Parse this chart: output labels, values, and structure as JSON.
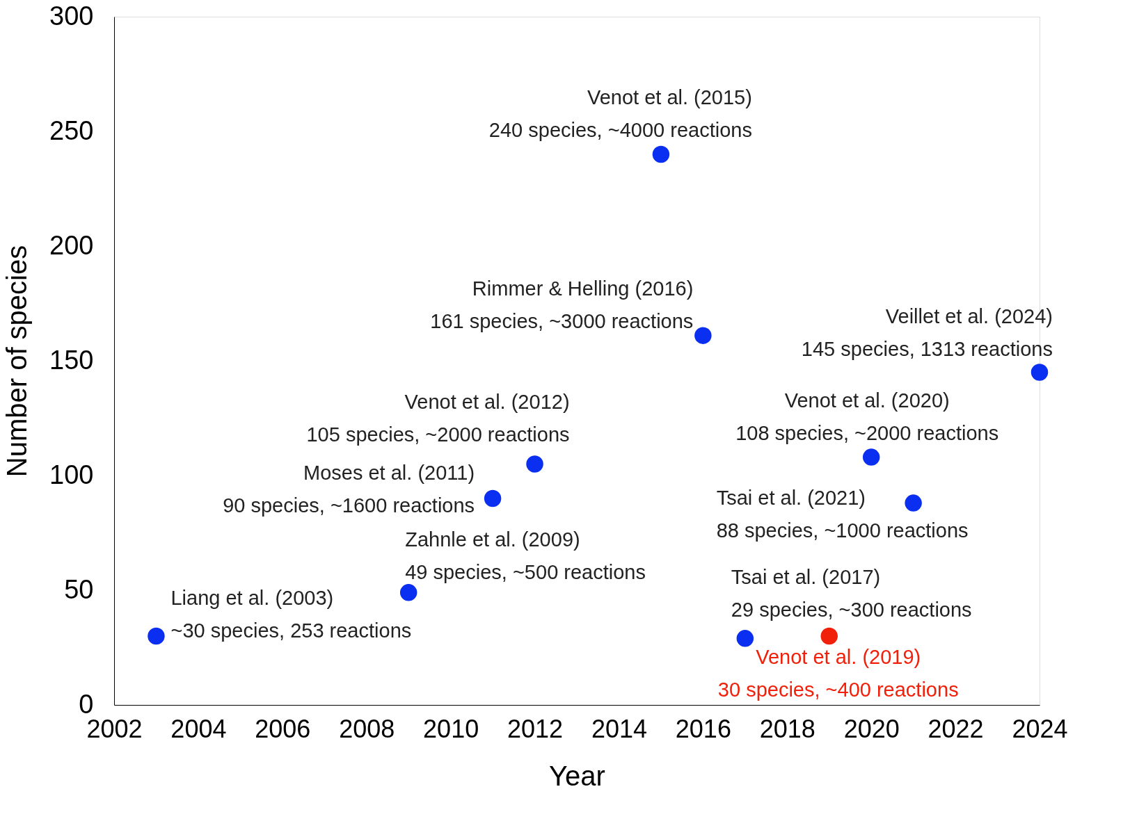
{
  "chart_data": {
    "type": "scatter",
    "xlabel": "Year",
    "ylabel": "Number of species",
    "xlim": [
      2002,
      2024
    ],
    "xticks": [
      2002,
      2004,
      2006,
      2008,
      2010,
      2012,
      2014,
      2016,
      2018,
      2020,
      2022,
      2024
    ],
    "ylim": [
      0,
      300
    ],
    "yticks": [
      0,
      50,
      100,
      150,
      200,
      250,
      300
    ],
    "grid": false,
    "series": [
      {
        "color": "#0a2ff0",
        "x": [
          2003,
          2009,
          2011,
          2012,
          2015,
          2016,
          2017,
          2020,
          2021,
          2024
        ],
        "values": [
          30,
          49,
          90,
          105,
          240,
          161,
          29,
          108,
          88,
          145
        ]
      },
      {
        "color": "#f0200a",
        "x": [
          2019
        ],
        "values": [
          30
        ]
      }
    ],
    "annotations": [
      {
        "text": "Liang et al. (2003)\n~30 species, 253 reactions",
        "x": 2003,
        "y": 30
      },
      {
        "text": "Zahnle et al. (2009)\n49 species, ~500 reactions",
        "x": 2009,
        "y": 49
      },
      {
        "text": "Moses et al. (2011)\n90 species, ~1600 reactions",
        "x": 2011,
        "y": 90
      },
      {
        "text": "Venot et al. (2012)\n105 species, ~2000 reactions",
        "x": 2012,
        "y": 105
      },
      {
        "text": "Venot et al. (2015)\n240 species, ~4000 reactions",
        "x": 2015,
        "y": 240
      },
      {
        "text": "Rimmer & Helling (2016)\n161 species, ~3000 reactions",
        "x": 2016,
        "y": 161
      },
      {
        "text": "Tsai et al. (2017)\n29 species, ~300 reactions",
        "x": 2017,
        "y": 29
      },
      {
        "text": "Venot et al. (2019)\n30 species, ~400 reactions",
        "x": 2019,
        "y": 30
      },
      {
        "text": "Venot et al. (2020)\n108 species, ~2000 reactions",
        "x": 2020,
        "y": 108
      },
      {
        "text": "Tsai et al. (2021)\n88 species, ~1000 reactions",
        "x": 2021,
        "y": 88
      },
      {
        "text": "Veillet et al. (2024)\n145 species, 1313 reactions",
        "x": 2024,
        "y": 145
      }
    ]
  }
}
